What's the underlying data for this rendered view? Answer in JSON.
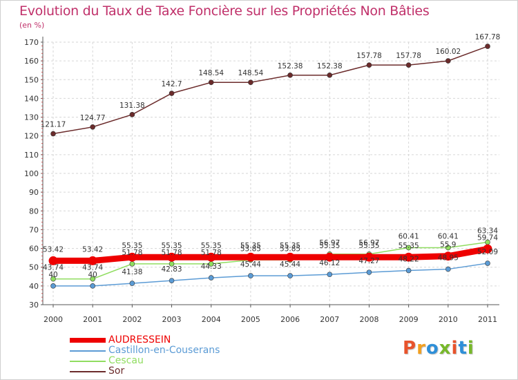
{
  "title": "Evolution du Taux de Taxe Foncière sur les Propriétés Non Bâties",
  "unit_label": "(en %)",
  "logo_text": "Proxiti",
  "logo_colors": [
    "#e8532c",
    "#f29f1f",
    "#2e8fd8",
    "#77b82a",
    "#e8532c",
    "#2e8fd8",
    "#77b82a"
  ],
  "chart_data": {
    "type": "line",
    "title": "Evolution du Taux de Taxe Foncière sur les Propriétés Non Bâties",
    "ylabel": "(en %)",
    "xlabel": "",
    "x": [
      "2000",
      "2001",
      "2002",
      "2003",
      "2004",
      "2005",
      "2006",
      "2007",
      "2008",
      "2009",
      "2010",
      "2011"
    ],
    "ylim": [
      30,
      170
    ],
    "yticks": [
      30,
      40,
      50,
      60,
      70,
      80,
      90,
      100,
      110,
      120,
      130,
      140,
      150,
      160,
      170
    ],
    "grid": true,
    "legend_position": "bottom-left",
    "series": [
      {
        "name": "AUDRESSEIN",
        "color": "#ee0000",
        "values": [
          53.42,
          53.42,
          55.35,
          55.35,
          55.35,
          55.35,
          55.35,
          55.35,
          55.35,
          55.35,
          55.9,
          59.74
        ],
        "labels": [
          "53.42",
          "53.42",
          "55.35",
          "55.35",
          "55.35",
          "55.35",
          "55.35",
          "55.35",
          "55.35",
          "55.35",
          "55.9",
          "59.74"
        ]
      },
      {
        "name": "Castillon-en-Couserans",
        "color": "#5b9bd5",
        "values": [
          40,
          40,
          41.38,
          42.83,
          44.33,
          45.44,
          45.44,
          46.12,
          47.27,
          48.22,
          48.95,
          52.09
        ],
        "labels": [
          "40",
          "40",
          "41.38",
          "42.83",
          "44.33",
          "45.44",
          "45.44",
          "46.12",
          "47.27",
          "48.22",
          "48.95",
          "52.09"
        ]
      },
      {
        "name": "Cescau",
        "color": "#90dd60",
        "values": [
          43.74,
          43.74,
          51.78,
          51.78,
          51.78,
          53.85,
          53.85,
          56.97,
          56.97,
          60.41,
          60.41,
          63.34
        ],
        "labels": [
          "43.74",
          "43.74",
          "51.78",
          "51.78",
          "51.78",
          "53.85",
          "53.85",
          "56.97",
          "56.97",
          "60.41",
          "60.41",
          "63.34"
        ]
      },
      {
        "name": "Sor",
        "color": "#6b2b2b",
        "values": [
          121.17,
          124.77,
          131.38,
          142.7,
          148.54,
          148.54,
          152.38,
          152.38,
          157.78,
          157.78,
          160.02,
          167.78
        ],
        "labels": [
          "121.17",
          "124.77",
          "131.38",
          "142.7",
          "148.54",
          "148.54",
          "152.38",
          "152.38",
          "157.78",
          "157.78",
          "160.02",
          "167.78"
        ]
      }
    ]
  }
}
